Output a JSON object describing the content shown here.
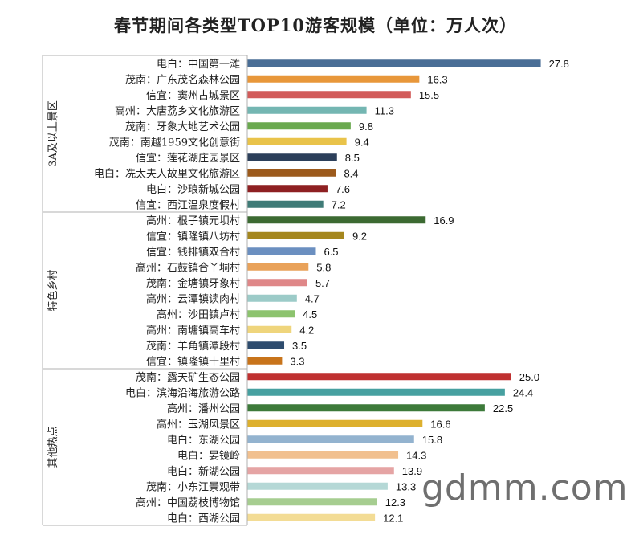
{
  "watermark": "gdmm.com",
  "chart_data": {
    "type": "bar",
    "orientation": "horizontal",
    "title": "春节期间各类型TOP10游客规模（单位：万人次）",
    "groups": [
      {
        "name": "3A及以上景区",
        "categories": [
          "电白：中国第一滩",
          "茂南：广东茂名森林公园",
          "信宜：窦州古城景区",
          "高州：大唐荔乡文化旅游区",
          "茂南：牙象大地艺术公园",
          "茂南：南越1959文化创意街",
          "信宜：莲花湖庄园景区",
          "电白：冼太夫人故里文化旅游区",
          "电白：沙琅新城公园",
          "信宜：西江温泉度假村"
        ],
        "values": [
          27.8,
          16.3,
          15.5,
          11.3,
          9.8,
          9.4,
          8.5,
          8.4,
          7.6,
          7.2
        ],
        "colors": [
          "#4a6e96",
          "#e8973a",
          "#d25b5a",
          "#74b6b2",
          "#6aa94f",
          "#e9c34a",
          "#2c3f5a",
          "#9c5a1c",
          "#8e2022",
          "#3f7b77"
        ]
      },
      {
        "name": "特色乡村",
        "categories": [
          "高州：根子镇元坝村",
          "信宜：镇隆镇八坊村",
          "信宜：钱排镇双合村",
          "高州：石鼓镇合丫垌村",
          "茂南：金塘镇牙象村",
          "高州：云潭镇读肉村",
          "高州：沙田镇卢村",
          "高州：南塘镇高车村",
          "茂南：羊角镇潭段村",
          "信宜：镇隆镇十里村"
        ],
        "values": [
          16.9,
          9.2,
          6.5,
          5.8,
          5.7,
          4.7,
          4.5,
          4.2,
          3.5,
          3.3
        ],
        "colors": [
          "#3c6a32",
          "#a5871e",
          "#6b8fc0",
          "#e9a25a",
          "#df8788",
          "#9ccbc8",
          "#8cc36e",
          "#efd57c",
          "#2e4c6e",
          "#c8741b"
        ]
      },
      {
        "name": "其他热点",
        "categories": [
          "茂南：露天矿生态公园",
          "电白：滨海沿海旅游公路",
          "高州：潘州公园",
          "高州：玉湖风景区",
          "电白：东湖公园",
          "电白：晏镜岭",
          "电白：新湖公园",
          "茂南：小东江景观带",
          "高州：中国荔枝博物馆",
          "电白：西湖公园"
        ],
        "values": [
          25.0,
          24.4,
          22.5,
          16.6,
          15.8,
          14.3,
          13.9,
          13.3,
          12.3,
          12.1
        ],
        "colors": [
          "#bf3030",
          "#47a0a0",
          "#3d7a3a",
          "#ddb02e",
          "#93b3cf",
          "#f1c08f",
          "#e5a4a4",
          "#b5d8d6",
          "#a6cd90",
          "#f3dc95"
        ]
      }
    ]
  }
}
